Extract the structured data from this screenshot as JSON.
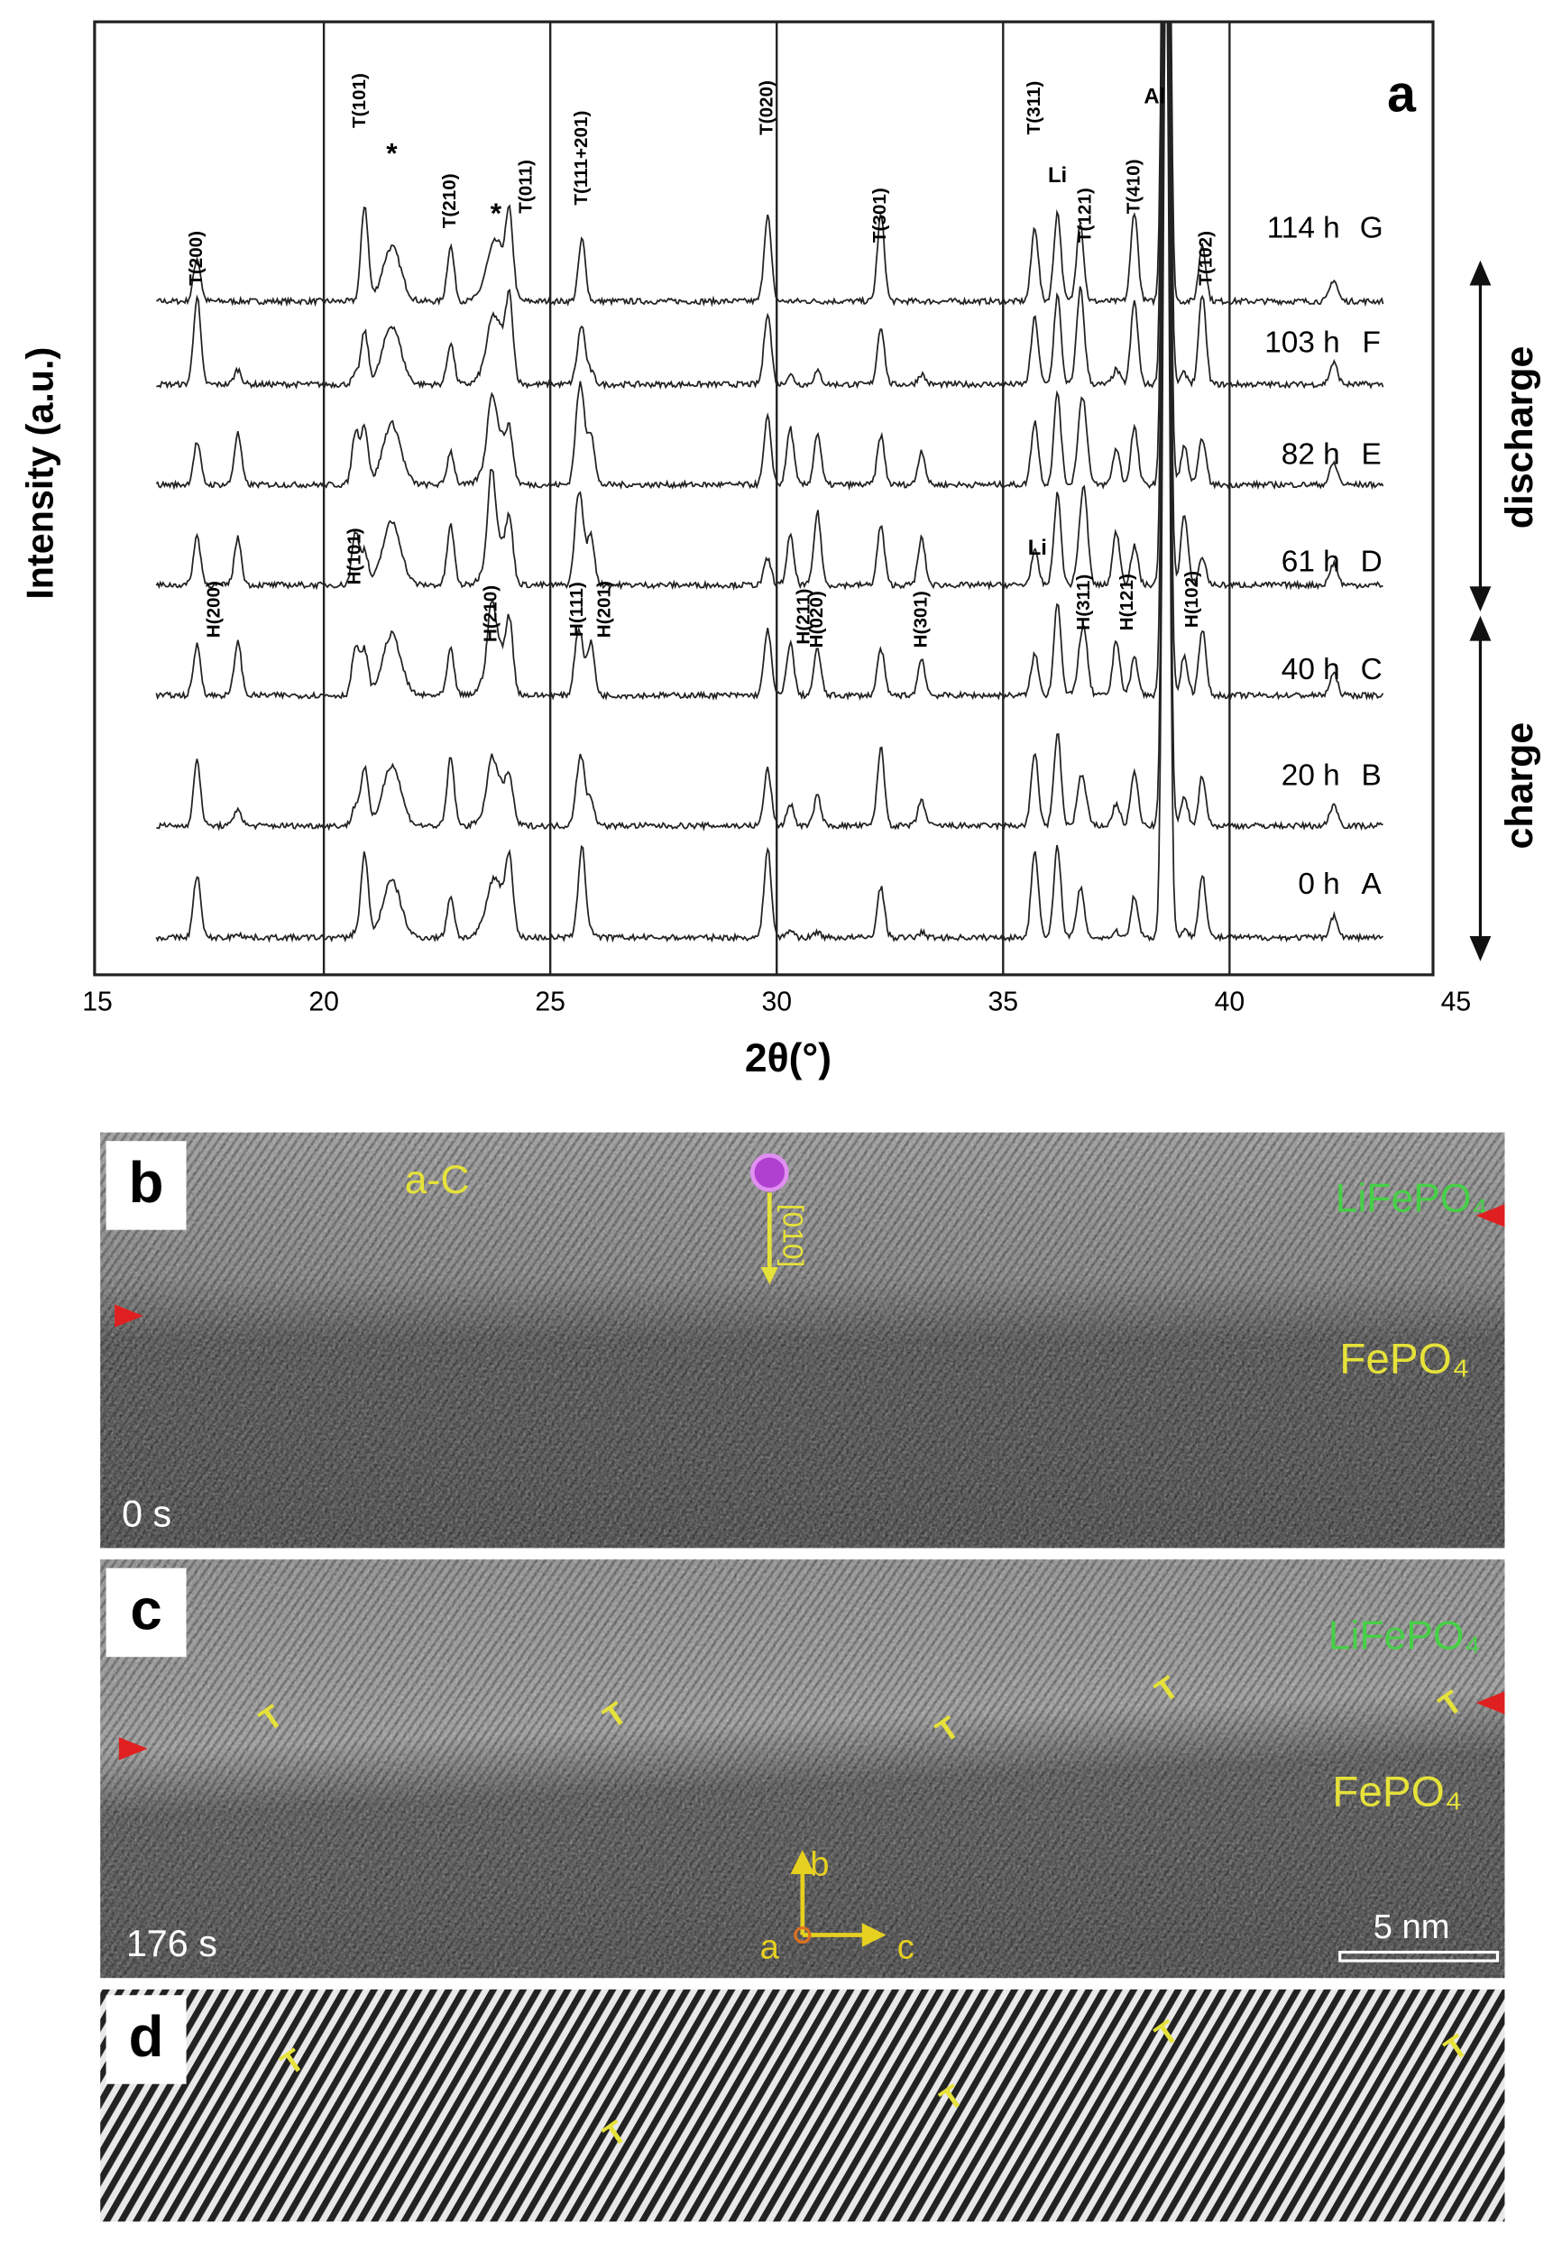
{
  "figure": {
    "panel_a": {
      "label": "a",
      "x_axis_label": "2θ(°)",
      "y_axis_label": "Intensity (a.u.)",
      "xlim": [
        15,
        45
      ],
      "xticks": [
        15,
        20,
        25,
        30,
        35,
        40,
        45
      ],
      "traces": [
        {
          "time": "114 h",
          "label": "G"
        },
        {
          "time": "103 h",
          "label": "F"
        },
        {
          "time": "82 h",
          "label": "E"
        },
        {
          "time": "61 h",
          "label": "D"
        },
        {
          "time": "40 h",
          "label": "C"
        },
        {
          "time": "20 h",
          "label": "B"
        },
        {
          "time": "0 h",
          "label": "A"
        }
      ],
      "peak_labels": [
        {
          "label": "T(200)",
          "x": 17.2
        },
        {
          "label": "T(101)",
          "x": 20.9
        },
        {
          "label": "*",
          "x": 21.5
        },
        {
          "label": "T(210)",
          "x": 22.8
        },
        {
          "label": "*",
          "x": 23.8
        },
        {
          "label": "T(011)",
          "x": 24.1
        },
        {
          "label": "T(111+201)",
          "x": 25.7
        },
        {
          "label": "T(020)",
          "x": 29.8
        },
        {
          "label": "T(301)",
          "x": 32.3
        },
        {
          "label": "T(311)",
          "x": 35.7
        },
        {
          "label": "Li",
          "x": 36.2
        },
        {
          "label": "T(121)",
          "x": 36.7
        },
        {
          "label": "T(410)",
          "x": 37.9
        },
        {
          "label": "Al",
          "x": 38.6
        },
        {
          "label": "T(102)",
          "x": 39.4
        },
        {
          "label": "H(200)",
          "x": 18.1
        },
        {
          "label": "H(101)",
          "x": 20.7
        },
        {
          "label": "H(210)",
          "x": 23.7
        },
        {
          "label": "H(111)",
          "x": 25.6
        },
        {
          "label": "H(201)",
          "x": 25.9
        },
        {
          "label": "H(211)",
          "x": 30.3
        },
        {
          "label": "H(020)",
          "x": 30.9
        },
        {
          "label": "H(301)",
          "x": 33.2
        },
        {
          "label": "Li",
          "x": 36.2
        },
        {
          "label": "H(311)",
          "x": 36.8
        },
        {
          "label": "H(121)",
          "x": 37.5
        },
        {
          "label": "H(102)",
          "x": 39.0
        }
      ],
      "phase_labels": [
        "discharge",
        "charge"
      ]
    },
    "panel_b": {
      "label": "b",
      "texts": [
        "a-C",
        "LiFePO₄",
        "FePO₄",
        "0 s",
        "[010]"
      ]
    },
    "panel_c": {
      "label": "c",
      "texts": [
        "LiFePO₄",
        "FePO₄",
        "176 s",
        "5 nm",
        "b",
        "a",
        "c"
      ],
      "markers": [
        "T",
        "T",
        "T",
        "T",
        "T"
      ]
    },
    "panel_d": {
      "label": "d",
      "markers": [
        "T",
        "T",
        "T",
        "T",
        "T"
      ]
    }
  }
}
